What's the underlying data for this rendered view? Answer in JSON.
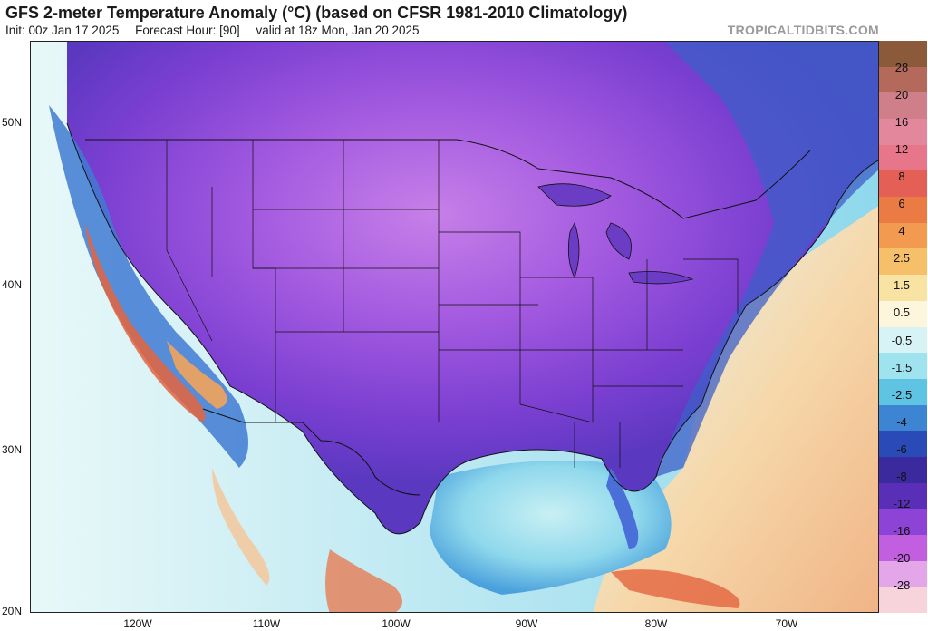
{
  "header": {
    "title": "GFS 2-meter Temperature Anomaly (°C) (based on CFSR 1981-2010 Climatology)",
    "init": "Init: 00z Jan 17 2025",
    "forecast": "Forecast Hour: [90]",
    "valid": "valid at 18z Mon, Jan 20 2025",
    "credit": "TROPICALTIDBITS.COM"
  },
  "map": {
    "lat_labels": [
      "50N",
      "40N",
      "30N",
      "20N"
    ],
    "lon_labels": [
      "120W",
      "110W",
      "100W",
      "90W",
      "80W",
      "70W"
    ],
    "colors": {
      "deep_cold": "#7a3fd0",
      "cold": "#9b4fe0",
      "cool": "#4a6fd8",
      "mild_cool": "#8fd8ec",
      "near_zero": "#e0f6f7",
      "warm": "#f3c79a",
      "hot": "#e05a3a"
    }
  },
  "colorbar": {
    "labels": [
      "28",
      "20",
      "16",
      "12",
      "8",
      "6",
      "4",
      "2.5",
      "1.5",
      "0.5",
      "-0.5",
      "-1.5",
      "-2.5",
      "-4",
      "-6",
      "-8",
      "-12",
      "-16",
      "-20",
      "-28"
    ],
    "colors": [
      "#8a5a3a",
      "#b36a5a",
      "#cf7f8a",
      "#e2879c",
      "#e8768a",
      "#e46057",
      "#ea7b45",
      "#f29a4f",
      "#f6c06b",
      "#f8e3a3",
      "#fdf6dc",
      "#d8f3f6",
      "#9fe3ef",
      "#5fc3e4",
      "#3d84d3",
      "#2a4ab8",
      "#3a2a9e",
      "#5a2fb8",
      "#8d43d6",
      "#c15fe0",
      "#e3a6e8",
      "#f7d3dc"
    ]
  }
}
